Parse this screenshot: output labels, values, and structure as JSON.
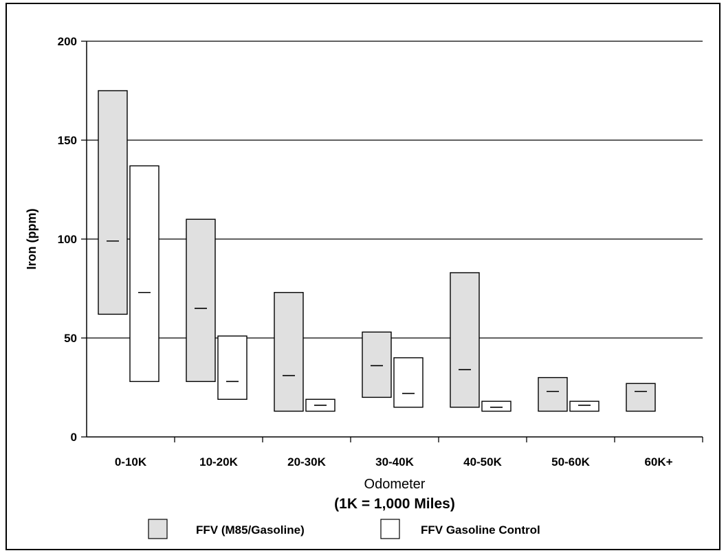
{
  "chart_data": {
    "type": "box",
    "categories": [
      "0-10K",
      "10-20K",
      "20-30K",
      "30-40K",
      "40-50K",
      "50-60K",
      "60K+"
    ],
    "ylabel": "Iron (ppm)",
    "xlabel": "Odometer",
    "xlabel_sub": "(1K = 1,000 Miles)",
    "ylim": [
      0,
      200
    ],
    "yticks": [
      0,
      50,
      100,
      150,
      200
    ],
    "grid": "horizontal",
    "legend_position": "bottom",
    "series": [
      {
        "name": "FFV (M85/Gasoline)",
        "color": "#e0e0e0",
        "low": [
          62,
          28,
          13,
          20,
          15,
          13,
          13
        ],
        "median": [
          99,
          65,
          31,
          36,
          34,
          23,
          23
        ],
        "high": [
          175,
          110,
          73,
          53,
          83,
          30,
          27
        ]
      },
      {
        "name": "FFV Gasoline Control",
        "color": "#ffffff",
        "low": [
          28,
          19,
          13,
          15,
          13,
          13,
          null
        ],
        "median": [
          73,
          28,
          16,
          22,
          15,
          16,
          null
        ],
        "high": [
          137,
          51,
          19,
          40,
          18,
          18,
          null
        ]
      }
    ]
  }
}
